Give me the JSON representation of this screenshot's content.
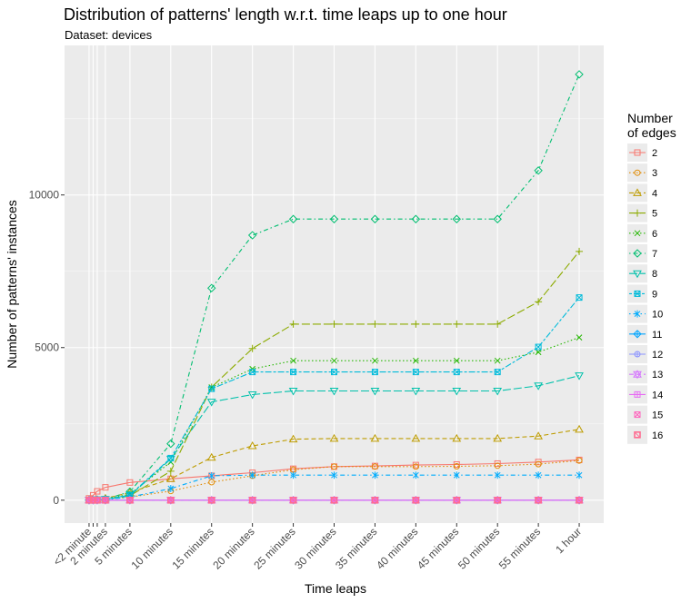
{
  "chart_data": {
    "type": "line",
    "title": "Distribution of patterns' length w.r.t. time leaps up to one hour",
    "subtitle": "Dataset: devices",
    "xlabel": "Time leaps",
    "ylabel": "Number of patterns' instances",
    "x_ticks": [
      "<2 minute",
      "2 minutes",
      "5 minutes",
      "10 minutes",
      "15 minutes",
      "20 minutes",
      "25 minutes",
      "30 minutes",
      "35 minutes",
      "40 minutes",
      "45 minutes",
      "50 minutes",
      "55 minutes",
      "1 hour"
    ],
    "x_tick_minutes": [
      0,
      2,
      5,
      10,
      15,
      20,
      25,
      30,
      35,
      40,
      45,
      50,
      55,
      60
    ],
    "x_points_minutes": [
      0,
      0.5,
      1,
      2,
      5,
      10,
      15,
      20,
      25,
      30,
      35,
      40,
      45,
      50,
      55,
      60
    ],
    "y_ticks": [
      0,
      5000,
      10000
    ],
    "ylim": [
      -750,
      14900
    ],
    "xlim": [
      -3,
      63
    ],
    "legend_title": "Number\nof edges",
    "legend_position": "right",
    "grid": true,
    "series": [
      {
        "name": "2",
        "color": "#F8766D",
        "dash": "solid",
        "shape": "square",
        "values": [
          60,
          160,
          290,
          420,
          580,
          700,
          800,
          900,
          1030,
          1100,
          1120,
          1150,
          1170,
          1200,
          1250,
          1320
        ]
      },
      {
        "name": "3",
        "color": "#E18A00",
        "dash": "dotted",
        "shape": "circle",
        "values": [
          5,
          10,
          20,
          40,
          100,
          300,
          590,
          800,
          1000,
          1100,
          1100,
          1100,
          1110,
          1130,
          1180,
          1300
        ]
      },
      {
        "name": "4",
        "color": "#BE9C00",
        "dash": "dashed",
        "shape": "triangle",
        "values": [
          5,
          10,
          20,
          60,
          250,
          700,
          1400,
          1780,
          2000,
          2020,
          2020,
          2020,
          2020,
          2020,
          2100,
          2320
        ]
      },
      {
        "name": "5",
        "color": "#8CAB00",
        "dash": "longdash",
        "shape": "plus",
        "values": [
          5,
          10,
          15,
          30,
          150,
          950,
          3700,
          4970,
          5770,
          5770,
          5770,
          5770,
          5770,
          5770,
          6500,
          8150
        ]
      },
      {
        "name": "6",
        "color": "#24B700",
        "dash": "dotted",
        "shape": "cross",
        "values": [
          5,
          10,
          15,
          30,
          200,
          1250,
          3700,
          4300,
          4570,
          4570,
          4570,
          4570,
          4570,
          4570,
          4850,
          5330
        ]
      },
      {
        "name": "7",
        "color": "#00BE70",
        "dash": "dotdash",
        "shape": "diamond",
        "values": [
          5,
          10,
          15,
          30,
          280,
          1850,
          6950,
          8680,
          9210,
          9210,
          9210,
          9210,
          9210,
          9210,
          10800,
          13950
        ]
      },
      {
        "name": "8",
        "color": "#00C1AB",
        "dash": "longdash",
        "shape": "triangle-down",
        "values": [
          5,
          10,
          15,
          30,
          150,
          1350,
          3220,
          3460,
          3580,
          3580,
          3580,
          3580,
          3580,
          3580,
          3750,
          4080
        ]
      },
      {
        "name": "9",
        "color": "#00BBDA",
        "dash": "twodash",
        "shape": "square-cross",
        "values": [
          5,
          10,
          15,
          30,
          170,
          1380,
          3650,
          4200,
          4200,
          4200,
          4200,
          4200,
          4200,
          4200,
          5020,
          6640
        ]
      },
      {
        "name": "10",
        "color": "#00ACFC",
        "dash": "dotdash",
        "shape": "asterisk",
        "values": [
          5,
          10,
          15,
          20,
          100,
          380,
          800,
          820,
          820,
          820,
          820,
          820,
          820,
          820,
          820,
          820
        ]
      },
      {
        "name": "11",
        "color": "#00A5FF",
        "dash": "solid",
        "shape": "diamond-plus",
        "values": [
          0,
          0,
          0,
          0,
          0,
          0,
          0,
          0,
          0,
          0,
          0,
          0,
          0,
          0,
          0,
          0
        ]
      },
      {
        "name": "12",
        "color": "#8B93FF",
        "dash": "solid",
        "shape": "circle-plus",
        "values": [
          0,
          0,
          0,
          0,
          0,
          0,
          0,
          0,
          0,
          0,
          0,
          0,
          0,
          0,
          0,
          0
        ]
      },
      {
        "name": "13",
        "color": "#D575FE",
        "dash": "dashed",
        "shape": "star",
        "values": [
          0,
          0,
          0,
          0,
          0,
          0,
          0,
          0,
          0,
          0,
          0,
          0,
          0,
          0,
          0,
          0
        ]
      },
      {
        "name": "14",
        "color": "#E76BF3",
        "dash": "solid",
        "shape": "square-plus",
        "values": [
          0,
          0,
          0,
          0,
          0,
          0,
          0,
          0,
          0,
          0,
          0,
          0,
          0,
          0,
          0,
          0
        ]
      },
      {
        "name": "15",
        "color": "#FF62BC",
        "dash": "none",
        "shape": "square-x",
        "values": [
          0,
          0,
          0,
          0,
          0,
          0,
          0,
          0,
          0,
          0,
          0,
          0,
          0,
          0,
          0,
          0
        ]
      },
      {
        "name": "16",
        "color": "#FF6C91",
        "dash": "none",
        "shape": "square-x-bold",
        "values": [
          0,
          0,
          0,
          0,
          0,
          0,
          0,
          0,
          0,
          0,
          0,
          0,
          0,
          0,
          0,
          0
        ]
      }
    ]
  }
}
